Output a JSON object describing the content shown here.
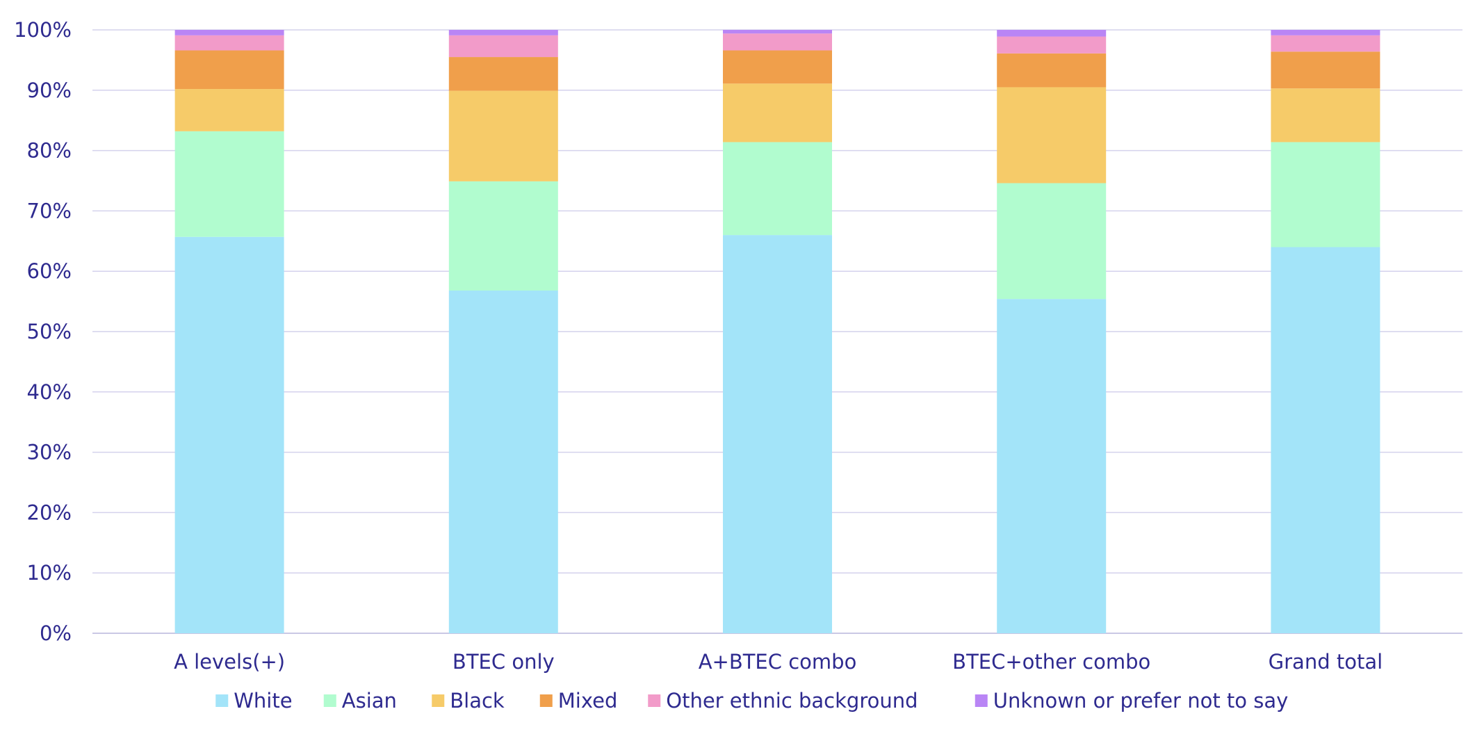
{
  "chart_data": {
    "type": "bar",
    "stacked": true,
    "title": "",
    "xlabel": "",
    "ylabel": "",
    "ylim": [
      0,
      100
    ],
    "y_ticks": [
      "0%",
      "10%",
      "20%",
      "30%",
      "40%",
      "50%",
      "60%",
      "70%",
      "80%",
      "90%",
      "100%"
    ],
    "grid": true,
    "legend_position": "bottom",
    "categories": [
      "A levels(+)",
      "BTEC only",
      "A+BTEC combo",
      "BTEC+other combo",
      "Grand total"
    ],
    "series": [
      {
        "name": "White",
        "color": "#a3e4f9",
        "values": [
          65.7,
          56.8,
          66.0,
          55.4,
          64.0
        ]
      },
      {
        "name": "Asian",
        "color": "#b1fccf",
        "values": [
          17.5,
          18.1,
          15.4,
          19.2,
          17.4
        ]
      },
      {
        "name": "Black",
        "color": "#f6cb69",
        "values": [
          7.0,
          15.0,
          9.7,
          15.9,
          8.9
        ]
      },
      {
        "name": "Mixed",
        "color": "#f09f4b",
        "values": [
          6.4,
          5.6,
          5.5,
          5.6,
          6.1
        ]
      },
      {
        "name": "Other ethnic background",
        "color": "#f29bc9",
        "values": [
          2.5,
          3.6,
          2.8,
          2.8,
          2.7
        ]
      },
      {
        "name": "Unknown or prefer not to say",
        "color": "#b985f5",
        "values": [
          0.9,
          0.9,
          0.6,
          1.1,
          0.9
        ]
      }
    ]
  }
}
